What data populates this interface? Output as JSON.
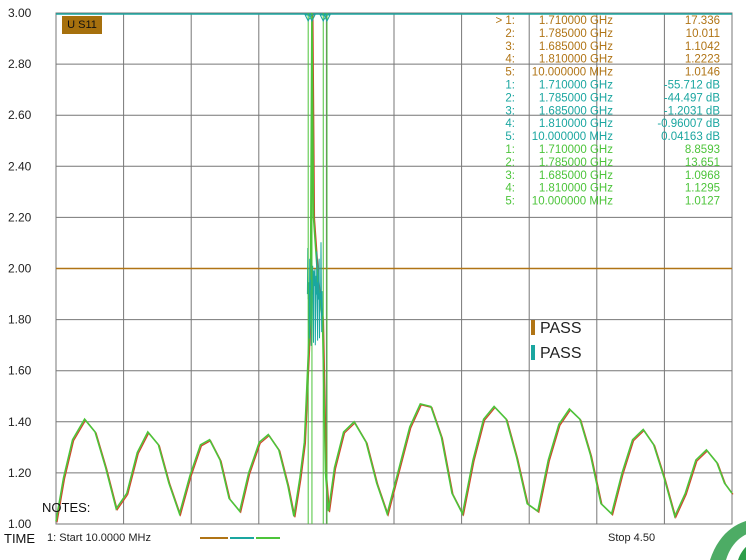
{
  "trace_badge": "U S11",
  "notes_label": "NOTES:",
  "time_label": "TIME",
  "start_label": "1: Start  10.0000 MHz",
  "stop_label": "Stop  4.50",
  "pass_labels": [
    "PASS",
    "PASS"
  ],
  "colors": {
    "trace1": "#b07415",
    "trace2": "#1aa6a0",
    "trace3": "#4cc43a",
    "grid": "#777777",
    "limit": "#b07415"
  },
  "markers": {
    "group1": {
      "color": "#b07415",
      "rows": [
        {
          "id": "> 1:",
          "freq": "1.710000 GHz",
          "val": "17.336"
        },
        {
          "id": "2:",
          "freq": "1.785000 GHz",
          "val": "10.011"
        },
        {
          "id": "3:",
          "freq": "1.685000 GHz",
          "val": "1.1042"
        },
        {
          "id": "4:",
          "freq": "1.810000 GHz",
          "val": "1.2223"
        },
        {
          "id": "5:",
          "freq": "10.000000 MHz",
          "val": "1.0146"
        }
      ]
    },
    "group2": {
      "color": "#1aa6a0",
      "rows": [
        {
          "id": "1:",
          "freq": "1.710000 GHz",
          "val": "-55.712 dB"
        },
        {
          "id": "2:",
          "freq": "1.785000 GHz",
          "val": "-44.497 dB"
        },
        {
          "id": "3:",
          "freq": "1.685000 GHz",
          "val": "-1.2031 dB"
        },
        {
          "id": "4:",
          "freq": "1.810000 GHz",
          "val": "-0.96007 dB"
        },
        {
          "id": "5:",
          "freq": "10.000000 MHz",
          "val": "0.04163 dB"
        }
      ]
    },
    "group3": {
      "color": "#4cc43a",
      "rows": [
        {
          "id": "1:",
          "freq": "1.710000 GHz",
          "val": "8.8593"
        },
        {
          "id": "2:",
          "freq": "1.785000 GHz",
          "val": "13.651"
        },
        {
          "id": "3:",
          "freq": "1.685000 GHz",
          "val": "1.0968"
        },
        {
          "id": "4:",
          "freq": "1.810000 GHz",
          "val": "1.1295"
        },
        {
          "id": "5:",
          "freq": "10.000000 MHz",
          "val": "1.0127"
        }
      ]
    }
  },
  "chart_data": {
    "type": "line",
    "title": "",
    "xlabel": "",
    "ylabel": "",
    "y_ticks": [
      "3.00",
      "2.80",
      "2.60",
      "2.40",
      "2.20",
      "2.00",
      "1.80",
      "1.60",
      "1.40",
      "1.20",
      "1.00"
    ],
    "ylim": [
      1.0,
      3.0
    ],
    "xlim": [
      0.01,
      4.5
    ],
    "x_unit": "GHz",
    "grid": true,
    "limit_line": 2.0,
    "series": [
      {
        "x": [
          0.01,
          0.06,
          0.12,
          0.2,
          0.27,
          0.34,
          0.41,
          0.48,
          0.55,
          0.62,
          0.69,
          0.76,
          0.83,
          0.9,
          0.97,
          1.03,
          1.1,
          1.16,
          1.23,
          1.29,
          1.36,
          1.42,
          1.49,
          1.55,
          1.59,
          1.63,
          1.66,
          1.7,
          1.71,
          1.72,
          1.75,
          1.78,
          1.8,
          1.82,
          1.86,
          1.92,
          1.99,
          2.07,
          2.14,
          2.21,
          2.28,
          2.36,
          2.43,
          2.5,
          2.57,
          2.64,
          2.71,
          2.78,
          2.85,
          2.92,
          3.0,
          3.07,
          3.14,
          3.21,
          3.28,
          3.35,
          3.42,
          3.49,
          3.56,
          3.63,
          3.7,
          3.77,
          3.84,
          3.91,
          3.98,
          4.05,
          4.12,
          4.19,
          4.26,
          4.33,
          4.4,
          4.45,
          4.5
        ],
        "y": [
          1.01,
          1.18,
          1.33,
          1.41,
          1.36,
          1.22,
          1.06,
          1.12,
          1.28,
          1.36,
          1.31,
          1.16,
          1.04,
          1.19,
          1.31,
          1.33,
          1.25,
          1.1,
          1.05,
          1.2,
          1.32,
          1.35,
          1.29,
          1.15,
          1.03,
          1.18,
          1.32,
          1.85,
          3.0,
          2.2,
          1.95,
          1.8,
          1.2,
          1.05,
          1.22,
          1.36,
          1.4,
          1.32,
          1.16,
          1.04,
          1.2,
          1.38,
          1.47,
          1.46,
          1.34,
          1.12,
          1.04,
          1.25,
          1.41,
          1.46,
          1.41,
          1.26,
          1.08,
          1.05,
          1.25,
          1.39,
          1.45,
          1.41,
          1.27,
          1.08,
          1.04,
          1.2,
          1.33,
          1.37,
          1.31,
          1.18,
          1.03,
          1.12,
          1.25,
          1.29,
          1.24,
          1.16,
          1.12
        ]
      }
    ]
  }
}
